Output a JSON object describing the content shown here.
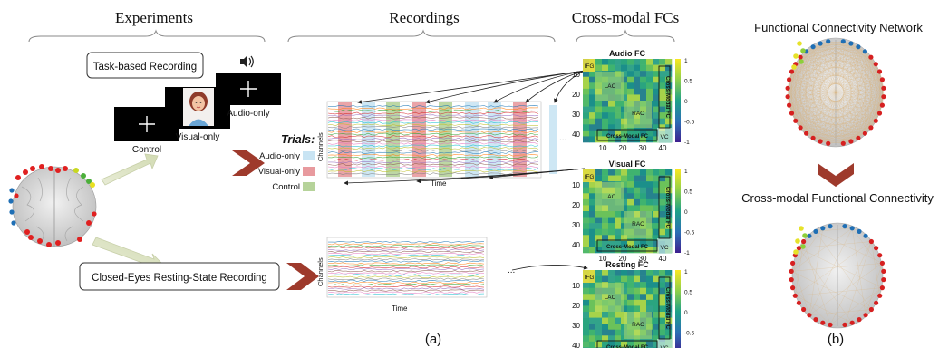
{
  "headers": {
    "experiments": "Experiments",
    "recordings": "Recordings",
    "cross_modal": "Cross-modal FCs",
    "fcn": "Functional Connectivity Network",
    "cmfc": "Cross-modal Functional Connectivity"
  },
  "panel_labels": {
    "a": "(a)",
    "b": "(b)"
  },
  "experiments": {
    "task_box": "Task-based Recording",
    "resting_box": "Closed-Eyes Resting-State Recording",
    "control": "Control",
    "visual_only": "Visual-only",
    "audio_only": "Audio-only"
  },
  "recordings": {
    "ylabel": "Channels",
    "xlabel": "Time",
    "ellipsis": "..."
  },
  "trials": {
    "title": "Trials:",
    "items": [
      {
        "label": "Audio-only",
        "color": "#c9e4f3"
      },
      {
        "label": "Visual-only",
        "color": "#e89a9e"
      },
      {
        "label": "Control",
        "color": "#b6d39a"
      }
    ]
  },
  "fc_matrices": [
    {
      "title": "Audio FC"
    },
    {
      "title": "Visual FC"
    },
    {
      "title": "Resting FC"
    }
  ],
  "matrix_labels": {
    "ifg": "IFG",
    "lac": "LAC",
    "rac": "RAC",
    "vc": "VC",
    "cross_modal_fc": "Cross-Modal FC",
    "yticks": [
      "10",
      "20",
      "30",
      "40"
    ],
    "xticks": [
      "10",
      "20",
      "30",
      "40"
    ],
    "cbar_ticks": [
      "1",
      "0.5",
      "0",
      "-0.5",
      "-1"
    ]
  },
  "colors": {
    "accent_arrow": "#9e3a2c",
    "audio": "#c9e4f3",
    "visual": "#e89a9e",
    "control": "#b6d39a"
  }
}
